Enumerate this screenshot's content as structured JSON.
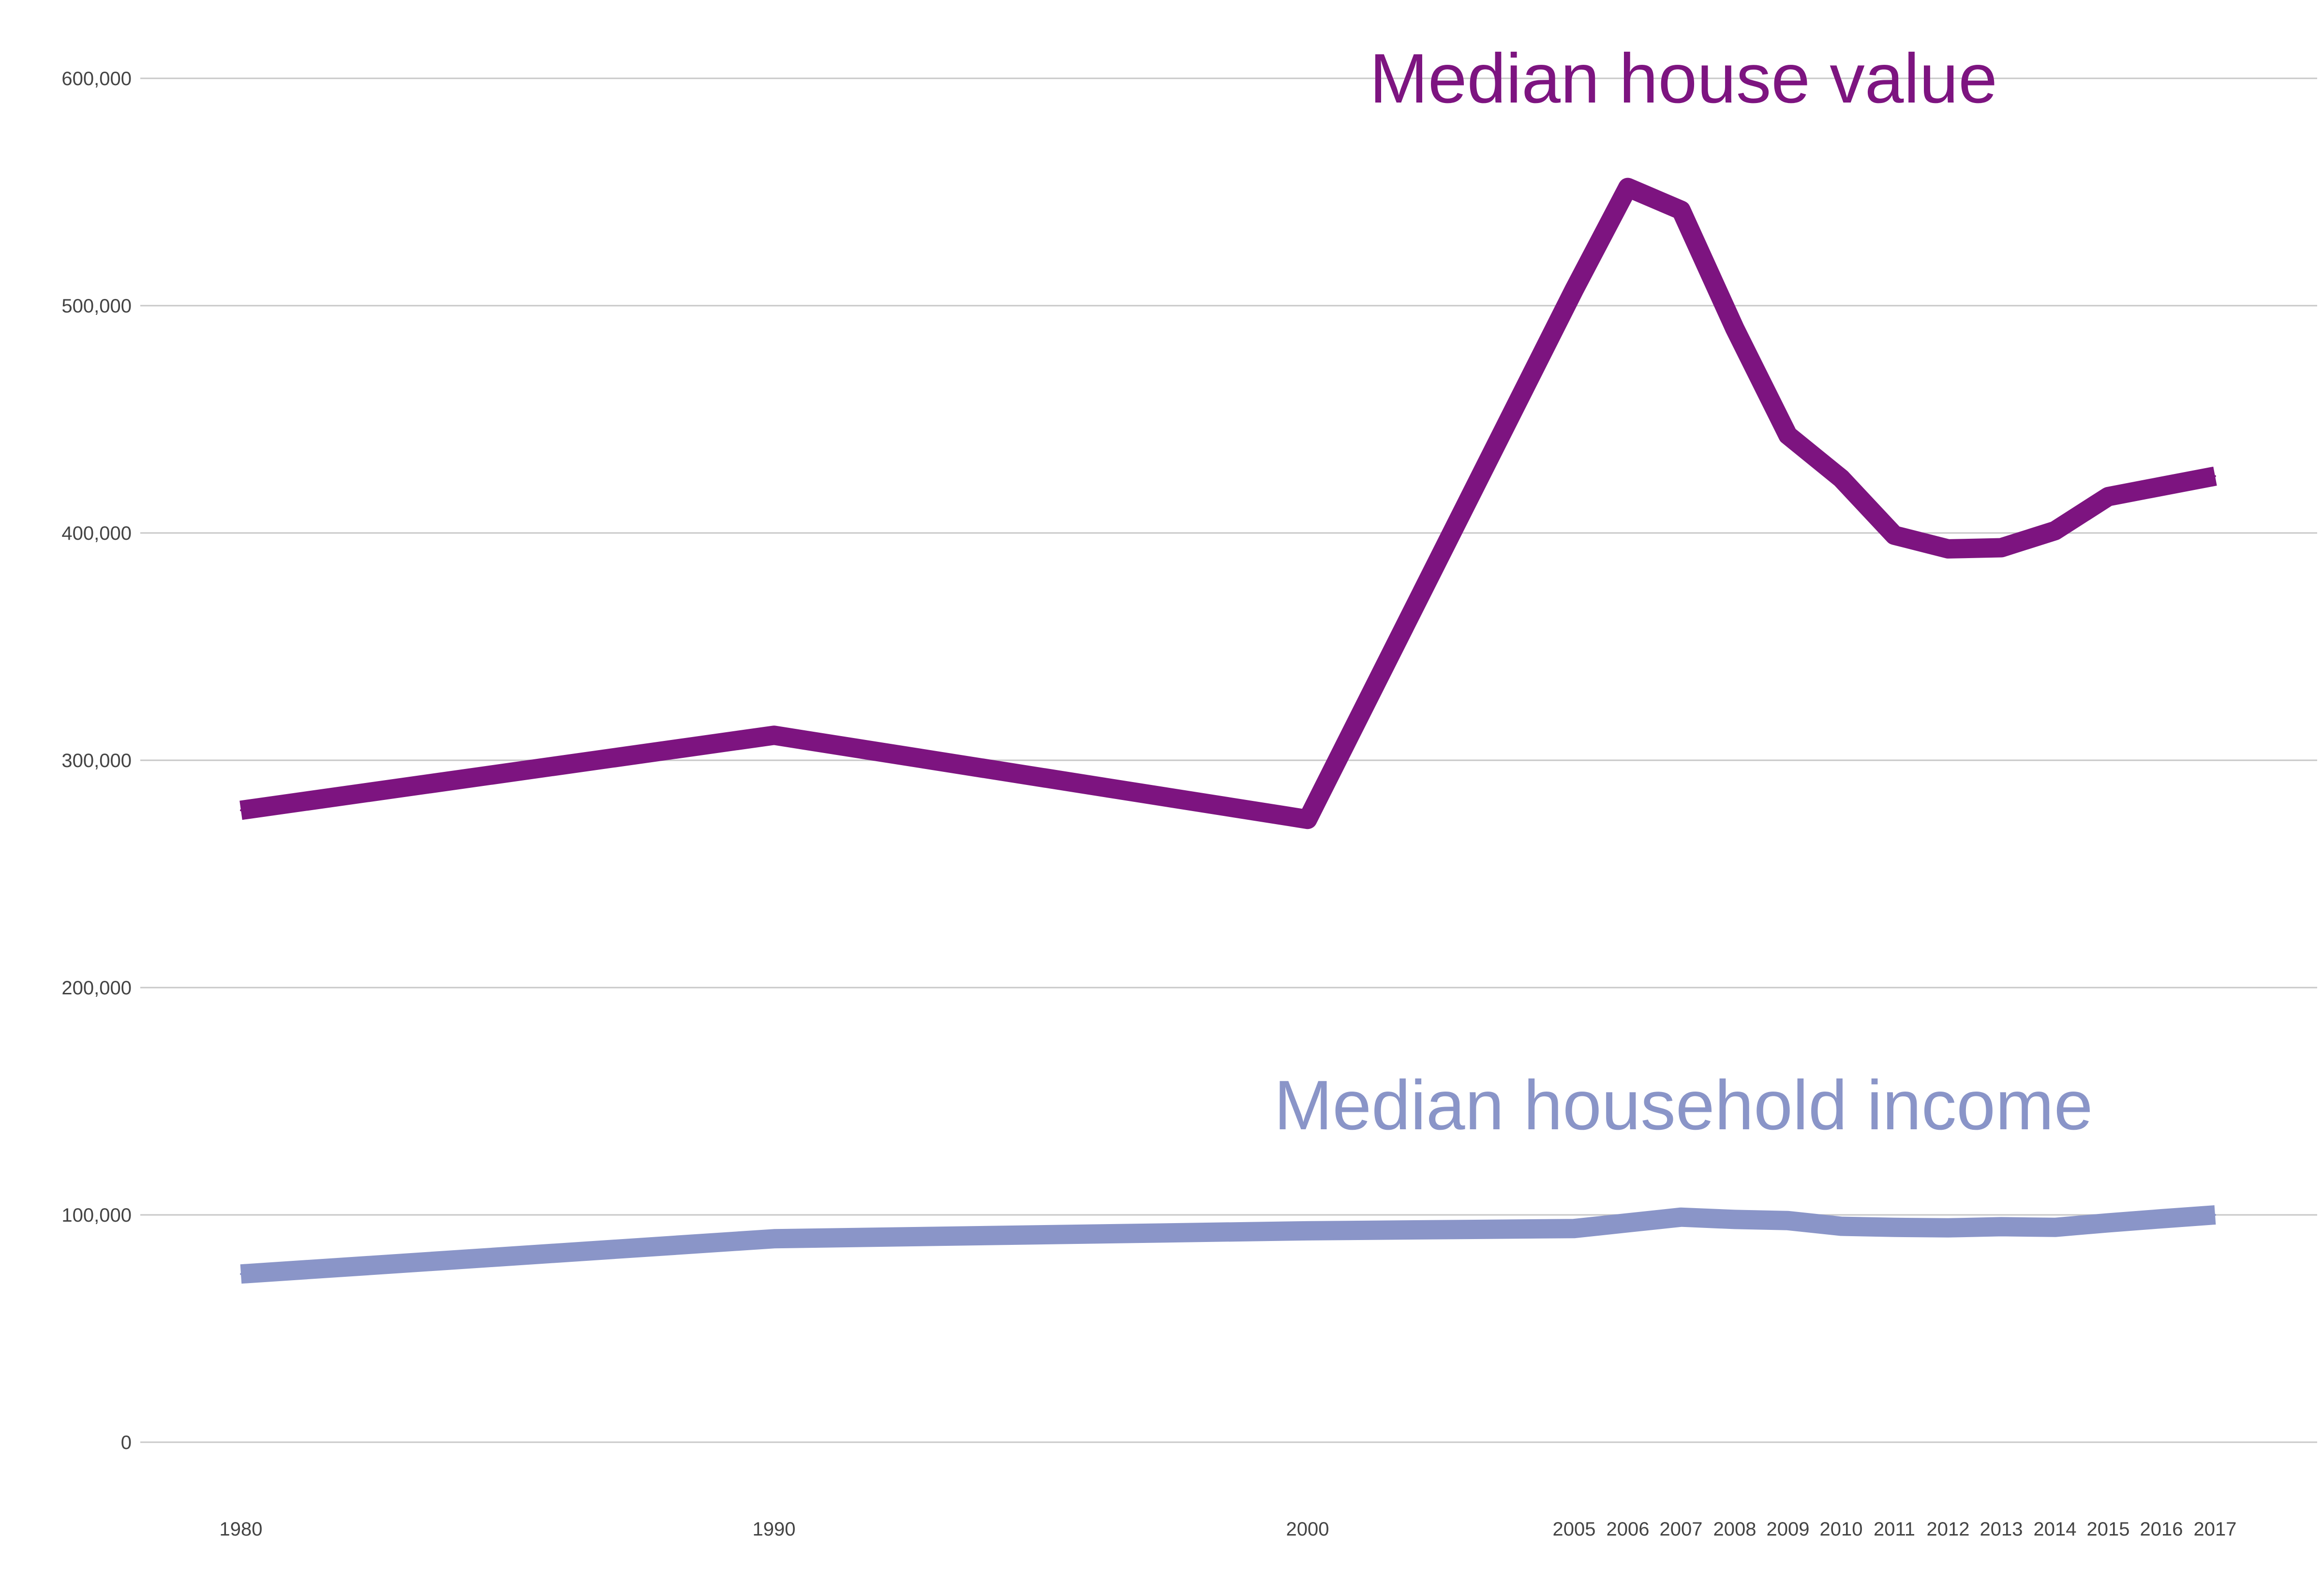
{
  "colors": {
    "house_value": "#7d1480",
    "household_income": "#8a95c8",
    "grid": "#c8c8c8",
    "tick_text": "#444444"
  },
  "chart_data": {
    "type": "line",
    "title": "",
    "xlabel": "",
    "ylabel": "",
    "ylim": [
      0,
      600000
    ],
    "grid": true,
    "legend": "none (series labeled directly on chart)",
    "categories": [
      "1980",
      "1990",
      "2000",
      "2005",
      "2006",
      "2007",
      "2008",
      "2009",
      "2010",
      "2011",
      "2012",
      "2013",
      "2014",
      "2015",
      "2016",
      "2017"
    ],
    "y_ticks": [
      {
        "value": 0,
        "label": "0"
      },
      {
        "value": 100000,
        "label": "100,000"
      },
      {
        "value": 200000,
        "label": "200,000"
      },
      {
        "value": 300000,
        "label": "300,000"
      },
      {
        "value": 400000,
        "label": "400,000"
      },
      {
        "value": 500000,
        "label": "500,000"
      },
      {
        "value": 600000,
        "label": "600,000"
      }
    ],
    "series": [
      {
        "name": "Median house value",
        "color": "#7d1480",
        "values": [
          278000,
          311000,
          274000,
          507000,
          552000,
          542000,
          490000,
          443000,
          424000,
          399000,
          393000,
          393500,
          401000,
          416000,
          420500,
          425000
        ]
      },
      {
        "name": "Median household income",
        "color": "#8a95c8",
        "values": [
          74000,
          89500,
          93000,
          94000,
          96500,
          99000,
          98000,
          97500,
          95000,
          94500,
          94300,
          94800,
          94500,
          96500,
          98300,
          100000
        ]
      }
    ]
  }
}
